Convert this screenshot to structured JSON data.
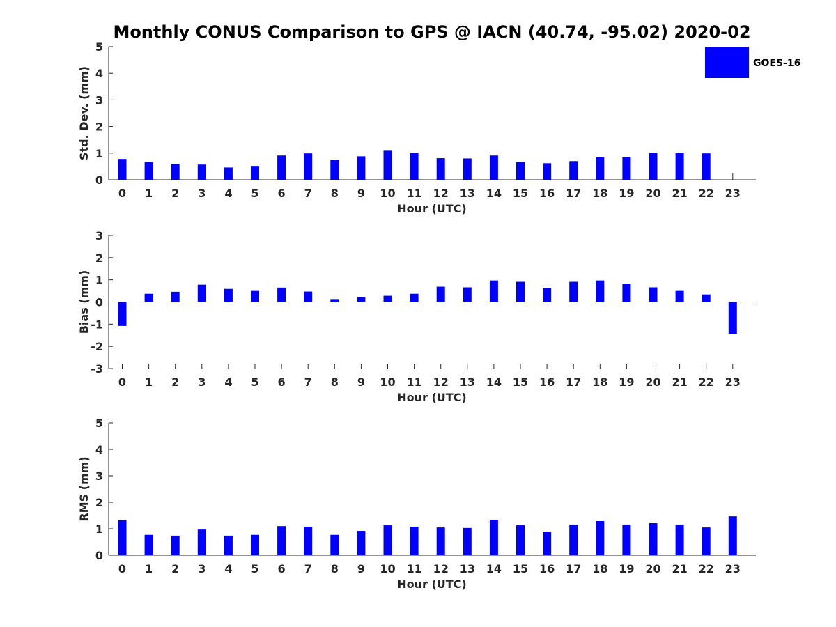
{
  "figure": {
    "title": "Monthly CONUS Comparison to GPS @ IACN (40.74, -95.02) 2020-02",
    "legend": {
      "label": "GOES-16",
      "color": "#0000ff",
      "placement": "top-right"
    }
  },
  "chart_data": [
    {
      "type": "bar",
      "name": "std-dev",
      "series": [
        {
          "name": "GOES-16",
          "values": [
            0.78,
            0.67,
            0.59,
            0.57,
            0.46,
            0.52,
            0.91,
            0.99,
            0.75,
            0.88,
            1.09,
            1.01,
            0.81,
            0.8,
            0.91,
            0.67,
            0.62,
            0.7,
            0.86,
            0.86,
            1.01,
            1.02,
            0.99,
            null
          ]
        }
      ],
      "categories": [
        "0",
        "1",
        "2",
        "3",
        "4",
        "5",
        "6",
        "7",
        "8",
        "9",
        "10",
        "11",
        "12",
        "13",
        "14",
        "15",
        "16",
        "17",
        "18",
        "19",
        "20",
        "21",
        "22",
        "23"
      ],
      "xlabel": "Hour (UTC)",
      "ylabel": "Std. Dev. (mm)",
      "ylim": [
        0,
        5
      ],
      "yticks": [
        "0",
        "1",
        "2",
        "3",
        "4",
        "5"
      ],
      "color": "#0000ff"
    },
    {
      "type": "bar",
      "name": "bias",
      "series": [
        {
          "name": "GOES-16",
          "values": [
            -1.08,
            0.37,
            0.46,
            0.78,
            0.59,
            0.53,
            0.65,
            0.47,
            0.13,
            0.22,
            0.28,
            0.37,
            0.69,
            0.66,
            0.97,
            0.91,
            0.62,
            0.91,
            0.97,
            0.81,
            0.66,
            0.53,
            0.34,
            -1.45
          ]
        }
      ],
      "categories": [
        "0",
        "1",
        "2",
        "3",
        "4",
        "5",
        "6",
        "7",
        "8",
        "9",
        "10",
        "11",
        "12",
        "13",
        "14",
        "15",
        "16",
        "17",
        "18",
        "19",
        "20",
        "21",
        "22",
        "23"
      ],
      "xlabel": "Hour (UTC)",
      "ylabel": "Bias (mm)",
      "ylim": [
        -3,
        3
      ],
      "yticks": [
        "-3",
        "-2",
        "-1",
        "0",
        "1",
        "2",
        "3"
      ],
      "color": "#0000ff"
    },
    {
      "type": "bar",
      "name": "rms",
      "series": [
        {
          "name": "GOES-16",
          "values": [
            1.32,
            0.77,
            0.74,
            0.97,
            0.74,
            0.77,
            1.1,
            1.08,
            0.77,
            0.92,
            1.13,
            1.08,
            1.05,
            1.03,
            1.34,
            1.13,
            0.87,
            1.16,
            1.29,
            1.16,
            1.21,
            1.16,
            1.05,
            1.47
          ]
        }
      ],
      "categories": [
        "0",
        "1",
        "2",
        "3",
        "4",
        "5",
        "6",
        "7",
        "8",
        "9",
        "10",
        "11",
        "12",
        "13",
        "14",
        "15",
        "16",
        "17",
        "18",
        "19",
        "20",
        "21",
        "22",
        "23"
      ],
      "xlabel": "Hour (UTC)",
      "ylabel": "RMS (mm)",
      "ylim": [
        0,
        5
      ],
      "yticks": [
        "0",
        "1",
        "2",
        "3",
        "4",
        "5"
      ],
      "color": "#0000ff"
    }
  ]
}
